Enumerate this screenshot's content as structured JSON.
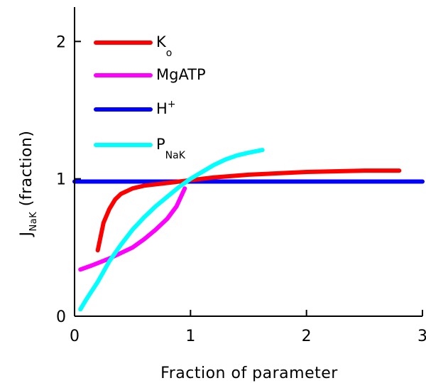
{
  "chart_data": {
    "type": "line",
    "title": "",
    "xlabel": "Fraction of parameter",
    "ylabel": {
      "main": "J",
      "sub": "NaK",
      "rest": " (fraction)"
    },
    "xlim": [
      0,
      3
    ],
    "ylim": [
      0,
      2.25
    ],
    "x_ticks": [
      {
        "value": 0,
        "label": "0"
      },
      {
        "value": 1,
        "label": "1"
      },
      {
        "value": 2,
        "label": "2"
      },
      {
        "value": 3,
        "label": "3"
      }
    ],
    "y_ticks": [
      {
        "value": 0,
        "label": "0"
      },
      {
        "value": 1,
        "label": "1"
      },
      {
        "value": 2,
        "label": "2"
      }
    ],
    "grid": false,
    "legend_position": "top-left",
    "series": [
      {
        "name": "Ko",
        "label": {
          "main": "K",
          "sub": "o",
          "sup": ""
        },
        "color": "#ff0000",
        "points": [
          [
            0.2,
            0.48
          ],
          [
            0.25,
            0.68
          ],
          [
            0.3,
            0.78
          ],
          [
            0.35,
            0.85
          ],
          [
            0.4,
            0.89
          ],
          [
            0.5,
            0.93
          ],
          [
            0.6,
            0.95
          ],
          [
            0.8,
            0.97
          ],
          [
            1.0,
            0.99
          ],
          [
            1.2,
            1.01
          ],
          [
            1.5,
            1.03
          ],
          [
            2.0,
            1.05
          ],
          [
            2.5,
            1.06
          ],
          [
            2.8,
            1.06
          ]
        ]
      },
      {
        "name": "MgATP",
        "label": {
          "main": "MgATP",
          "sub": "",
          "sup": ""
        },
        "color": "#ff00ff",
        "points": [
          [
            0.05,
            0.34
          ],
          [
            0.15,
            0.37
          ],
          [
            0.3,
            0.42
          ],
          [
            0.5,
            0.5
          ],
          [
            0.6,
            0.56
          ],
          [
            0.7,
            0.63
          ],
          [
            0.8,
            0.71
          ],
          [
            0.88,
            0.8
          ],
          [
            0.95,
            0.93
          ]
        ]
      },
      {
        "name": "H+",
        "label": {
          "main": "H",
          "sub": "",
          "sup": "+"
        },
        "color": "#0000ff",
        "points": [
          [
            0,
            0.98
          ],
          [
            3,
            0.98
          ]
        ]
      },
      {
        "name": "PNaK",
        "label": {
          "main": "P",
          "sub": "NaK",
          "sup": ""
        },
        "color": "#00ffff",
        "points": [
          [
            0.05,
            0.05
          ],
          [
            0.1,
            0.12
          ],
          [
            0.2,
            0.25
          ],
          [
            0.3,
            0.4
          ],
          [
            0.4,
            0.52
          ],
          [
            0.5,
            0.63
          ],
          [
            0.6,
            0.72
          ],
          [
            0.7,
            0.8
          ],
          [
            0.8,
            0.87
          ],
          [
            0.9,
            0.94
          ],
          [
            1.0,
            1.0
          ],
          [
            1.1,
            1.05
          ],
          [
            1.2,
            1.1
          ],
          [
            1.3,
            1.14
          ],
          [
            1.4,
            1.17
          ],
          [
            1.5,
            1.19
          ],
          [
            1.62,
            1.21
          ]
        ]
      }
    ]
  }
}
